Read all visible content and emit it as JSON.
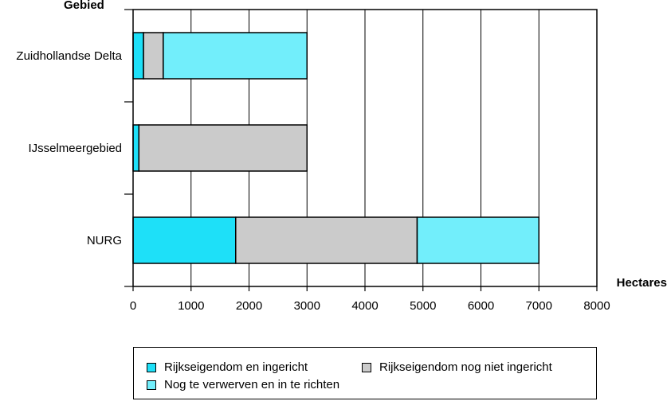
{
  "chart_data": {
    "type": "bar",
    "orientation": "horizontal",
    "stacked": true,
    "categories": [
      "Zuidhollandse Delta",
      "IJsselmeergebied",
      "NURG"
    ],
    "series": [
      {
        "name": "Rijkseigendom en ingericht",
        "color": "#1ee0f8",
        "values": [
          180,
          100,
          1770
        ]
      },
      {
        "name": "Rijkseigendom nog niet ingericht",
        "color": "#cbcbcb",
        "values": [
          340,
          2900,
          3130
        ]
      },
      {
        "name": "Nog te verwerven en in te richten",
        "color": "#72eefb",
        "values": [
          2480,
          0,
          2100
        ]
      }
    ],
    "xlabel": "Hectares",
    "ylabel": "Gebied",
    "xlim": [
      0,
      8000
    ],
    "xticks": [
      0,
      1000,
      2000,
      3000,
      4000,
      5000,
      6000,
      7000,
      8000
    ],
    "grid": true,
    "legend_position": "bottom"
  }
}
